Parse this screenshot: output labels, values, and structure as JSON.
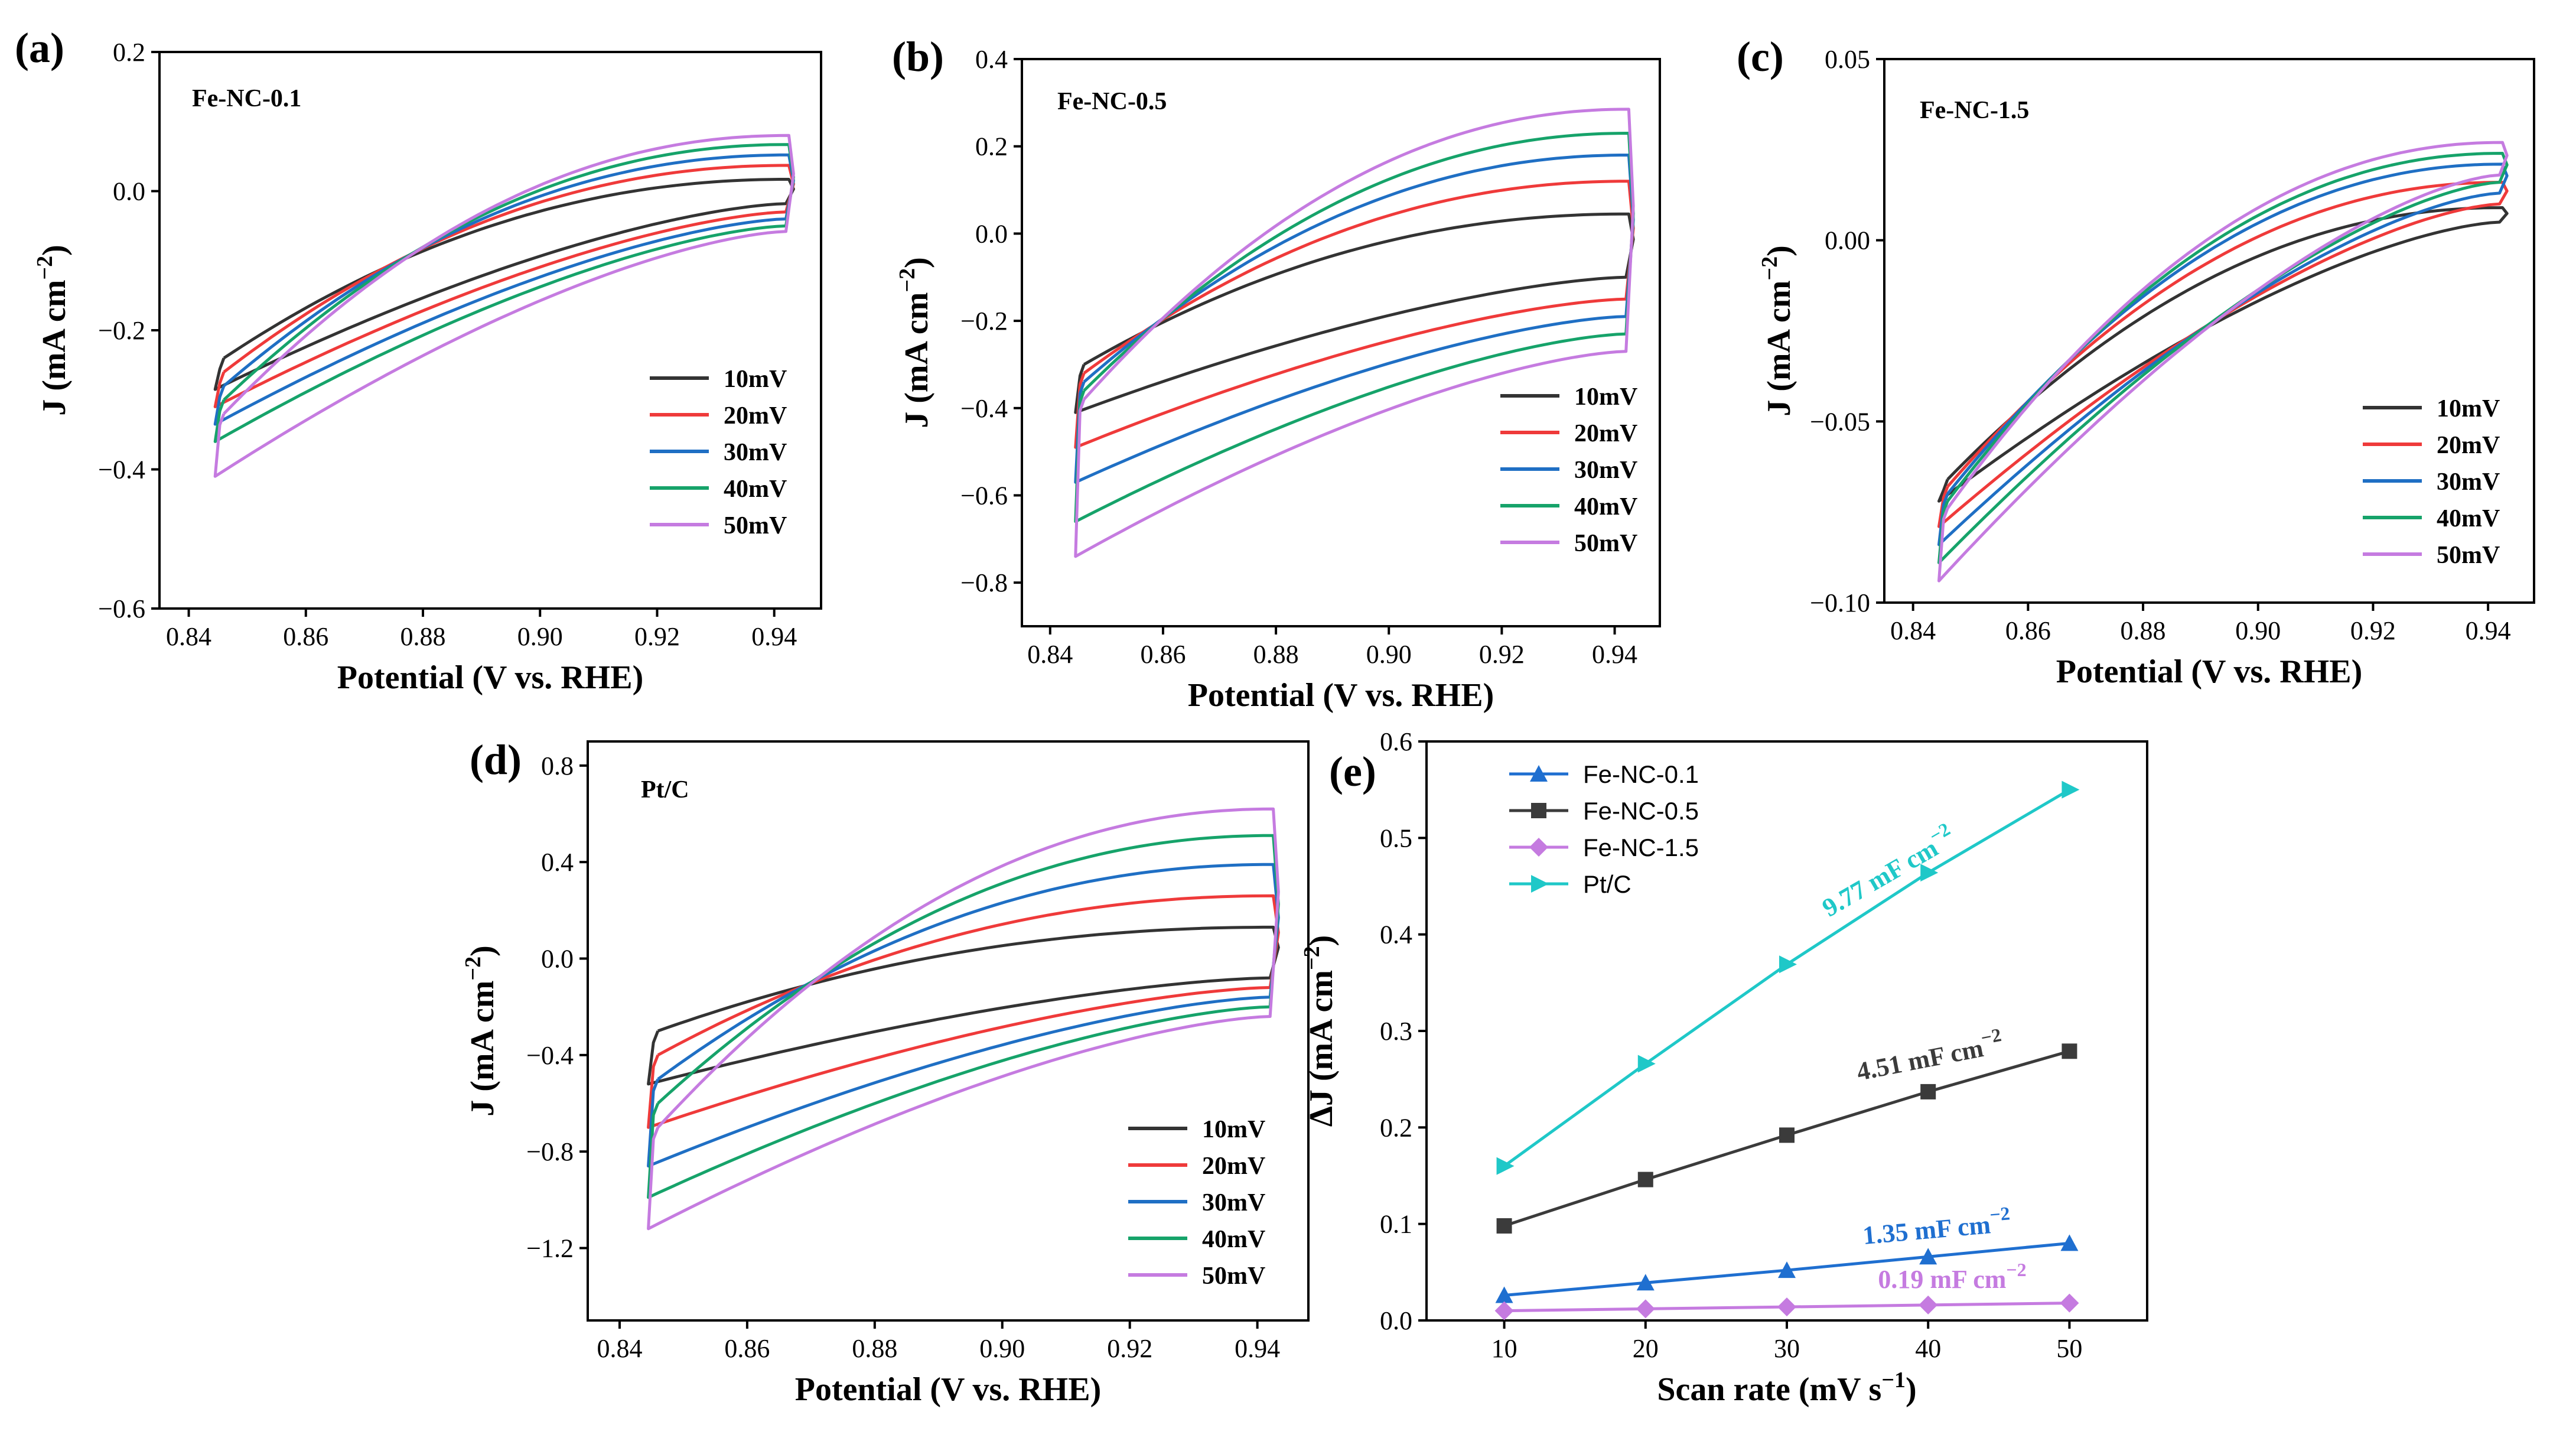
{
  "colors": {
    "10mV": "#333333",
    "20mV": "#ef3a3a",
    "30mV": "#1f6fc4",
    "40mV": "#16a36a",
    "50mV": "#c57be0",
    "fe01": "#1f6fd0",
    "fe05": "#3b3b3b",
    "fe15": "#c57be0",
    "ptc": "#1fc8c8"
  },
  "chart_data": [
    {
      "panel": "(a)",
      "type": "line",
      "annotation": "Fe-NC-0.1",
      "xlabel": "Potential (V vs. RHE)",
      "ylabel": "J (mA cm−2)",
      "xlim": [
        0.835,
        0.948
      ],
      "ylim": [
        -0.6,
        0.2
      ],
      "xticks": [
        "0.84",
        "0.86",
        "0.88",
        "0.90",
        "0.92",
        "0.94"
      ],
      "yticks": [
        "−0.6",
        "−0.4",
        "−0.2",
        "0.0",
        "0.2"
      ],
      "legend": [
        "10mV",
        "20mV",
        "30mV",
        "40mV",
        "50mV"
      ],
      "series": [
        {
          "name": "10mV",
          "upper_start": -0.24,
          "upper_end": 0.017,
          "lower_start": -0.285,
          "lower_end": -0.018
        },
        {
          "name": "20mV",
          "upper_start": -0.26,
          "upper_end": 0.037,
          "lower_start": -0.31,
          "lower_end": -0.03
        },
        {
          "name": "30mV",
          "upper_start": -0.28,
          "upper_end": 0.052,
          "lower_start": -0.335,
          "lower_end": -0.04
        },
        {
          "name": "40mV",
          "upper_start": -0.3,
          "upper_end": 0.067,
          "lower_start": -0.36,
          "lower_end": -0.05
        },
        {
          "name": "50mV",
          "upper_start": -0.32,
          "upper_end": 0.08,
          "lower_start": -0.41,
          "lower_end": -0.058
        }
      ]
    },
    {
      "panel": "(b)",
      "type": "line",
      "annotation": "Fe-NC-0.5",
      "xlabel": "Potential (V vs. RHE)",
      "ylabel": "J (mA cm−2)",
      "xlim": [
        0.835,
        0.948
      ],
      "ylim": [
        -0.9,
        0.4
      ],
      "xticks": [
        "0.84",
        "0.86",
        "0.88",
        "0.90",
        "0.92",
        "0.94"
      ],
      "yticks": [
        "−0.8",
        "−0.6",
        "−0.4",
        "−0.2",
        "0.0",
        "0.2",
        "0.4"
      ],
      "legend": [
        "10mV",
        "20mV",
        "30mV",
        "40mV",
        "50mV"
      ],
      "series": [
        {
          "name": "10mV",
          "upper_start": -0.3,
          "upper_end": 0.045,
          "lower_start": -0.41,
          "lower_end": -0.1
        },
        {
          "name": "20mV",
          "upper_start": -0.32,
          "upper_end": 0.12,
          "lower_start": -0.49,
          "lower_end": -0.15
        },
        {
          "name": "30mV",
          "upper_start": -0.34,
          "upper_end": 0.18,
          "lower_start": -0.57,
          "lower_end": -0.19
        },
        {
          "name": "40mV",
          "upper_start": -0.36,
          "upper_end": 0.23,
          "lower_start": -0.66,
          "lower_end": -0.23
        },
        {
          "name": "50mV",
          "upper_start": -0.38,
          "upper_end": 0.285,
          "lower_start": -0.74,
          "lower_end": -0.27
        }
      ]
    },
    {
      "panel": "(c)",
      "type": "line",
      "annotation": "Fe-NC-1.5",
      "xlabel": "Potential (V vs. RHE)",
      "ylabel": "J (mA cm−2)",
      "xlim": [
        0.835,
        0.948
      ],
      "ylim": [
        -0.1,
        0.05
      ],
      "xticks": [
        "0.84",
        "0.86",
        "0.88",
        "0.90",
        "0.92",
        "0.94"
      ],
      "yticks": [
        "−0.10",
        "−0.05",
        "0.00",
        "0.05"
      ],
      "legend": [
        "10mV",
        "20mV",
        "30mV",
        "40mV",
        "50mV"
      ],
      "series": [
        {
          "name": "10mV",
          "upper_start": -0.066,
          "upper_end": 0.009,
          "lower_start": -0.072,
          "lower_end": 0.005
        },
        {
          "name": "20mV",
          "upper_start": -0.068,
          "upper_end": 0.016,
          "lower_start": -0.079,
          "lower_end": 0.01
        },
        {
          "name": "30mV",
          "upper_start": -0.07,
          "upper_end": 0.021,
          "lower_start": -0.084,
          "lower_end": 0.013
        },
        {
          "name": "40mV",
          "upper_start": -0.072,
          "upper_end": 0.024,
          "lower_start": -0.089,
          "lower_end": 0.016
        },
        {
          "name": "50mV",
          "upper_start": -0.074,
          "upper_end": 0.027,
          "lower_start": -0.094,
          "lower_end": 0.018
        }
      ]
    },
    {
      "panel": "(d)",
      "type": "line",
      "annotation": "Pt/C",
      "xlabel": "Potential (V vs. RHE)",
      "ylabel": "J (mA cm−2)",
      "xlim": [
        0.835,
        0.948
      ],
      "ylim": [
        -1.5,
        0.9
      ],
      "xticks": [
        "0.84",
        "0.86",
        "0.88",
        "0.90",
        "0.92",
        "0.94"
      ],
      "yticks": [
        "−1.2",
        "−0.8",
        "−0.4",
        "0.0",
        "0.4",
        "0.8"
      ],
      "legend": [
        "10mV",
        "20mV",
        "30mV",
        "40mV",
        "50mV"
      ],
      "series": [
        {
          "name": "10mV",
          "upper_start": -0.3,
          "upper_end": 0.13,
          "lower_start": -0.52,
          "lower_end": -0.08
        },
        {
          "name": "20mV",
          "upper_start": -0.4,
          "upper_end": 0.26,
          "lower_start": -0.7,
          "lower_end": -0.12
        },
        {
          "name": "30mV",
          "upper_start": -0.5,
          "upper_end": 0.39,
          "lower_start": -0.86,
          "lower_end": -0.16
        },
        {
          "name": "40mV",
          "upper_start": -0.6,
          "upper_end": 0.51,
          "lower_start": -0.99,
          "lower_end": -0.2
        },
        {
          "name": "50mV",
          "upper_start": -0.7,
          "upper_end": 0.62,
          "lower_start": -1.12,
          "lower_end": -0.24
        }
      ]
    },
    {
      "panel": "(e)",
      "type": "line",
      "xlabel": "Scan rate (mV s−1)",
      "ylabel": "ΔJ (mA cm−2)",
      "xlim": [
        4.5,
        55.5
      ],
      "ylim": [
        0,
        0.6
      ],
      "xticks": [
        "10",
        "20",
        "30",
        "40",
        "50"
      ],
      "yticks": [
        "0.0",
        "0.1",
        "0.2",
        "0.3",
        "0.4",
        "0.5",
        "0.6"
      ],
      "legend": [
        "Fe-NC-0.1",
        "Fe-NC-0.5",
        "Fe-NC-1.5",
        "Pt/C"
      ],
      "x": [
        10,
        20,
        30,
        40,
        50
      ],
      "series": [
        {
          "name": "Fe-NC-0.1",
          "values": [
            0.026,
            0.039,
            0.052,
            0.066,
            0.08
          ],
          "marker": "triangle-up",
          "slope_label": "1.35 mF cm−2"
        },
        {
          "name": "Fe-NC-0.5",
          "values": [
            0.098,
            0.146,
            0.192,
            0.237,
            0.279
          ],
          "marker": "square",
          "slope_label": "4.51 mF cm−2"
        },
        {
          "name": "Fe-NC-1.5",
          "values": [
            0.01,
            0.012,
            0.014,
            0.016,
            0.018
          ],
          "marker": "diamond",
          "slope_label": "0.19 mF cm−2"
        },
        {
          "name": "Pt/C",
          "values": [
            0.16,
            0.266,
            0.369,
            0.464,
            0.55
          ],
          "marker": "triangle-right",
          "slope_label": "9.77 mF cm−2"
        }
      ]
    }
  ]
}
